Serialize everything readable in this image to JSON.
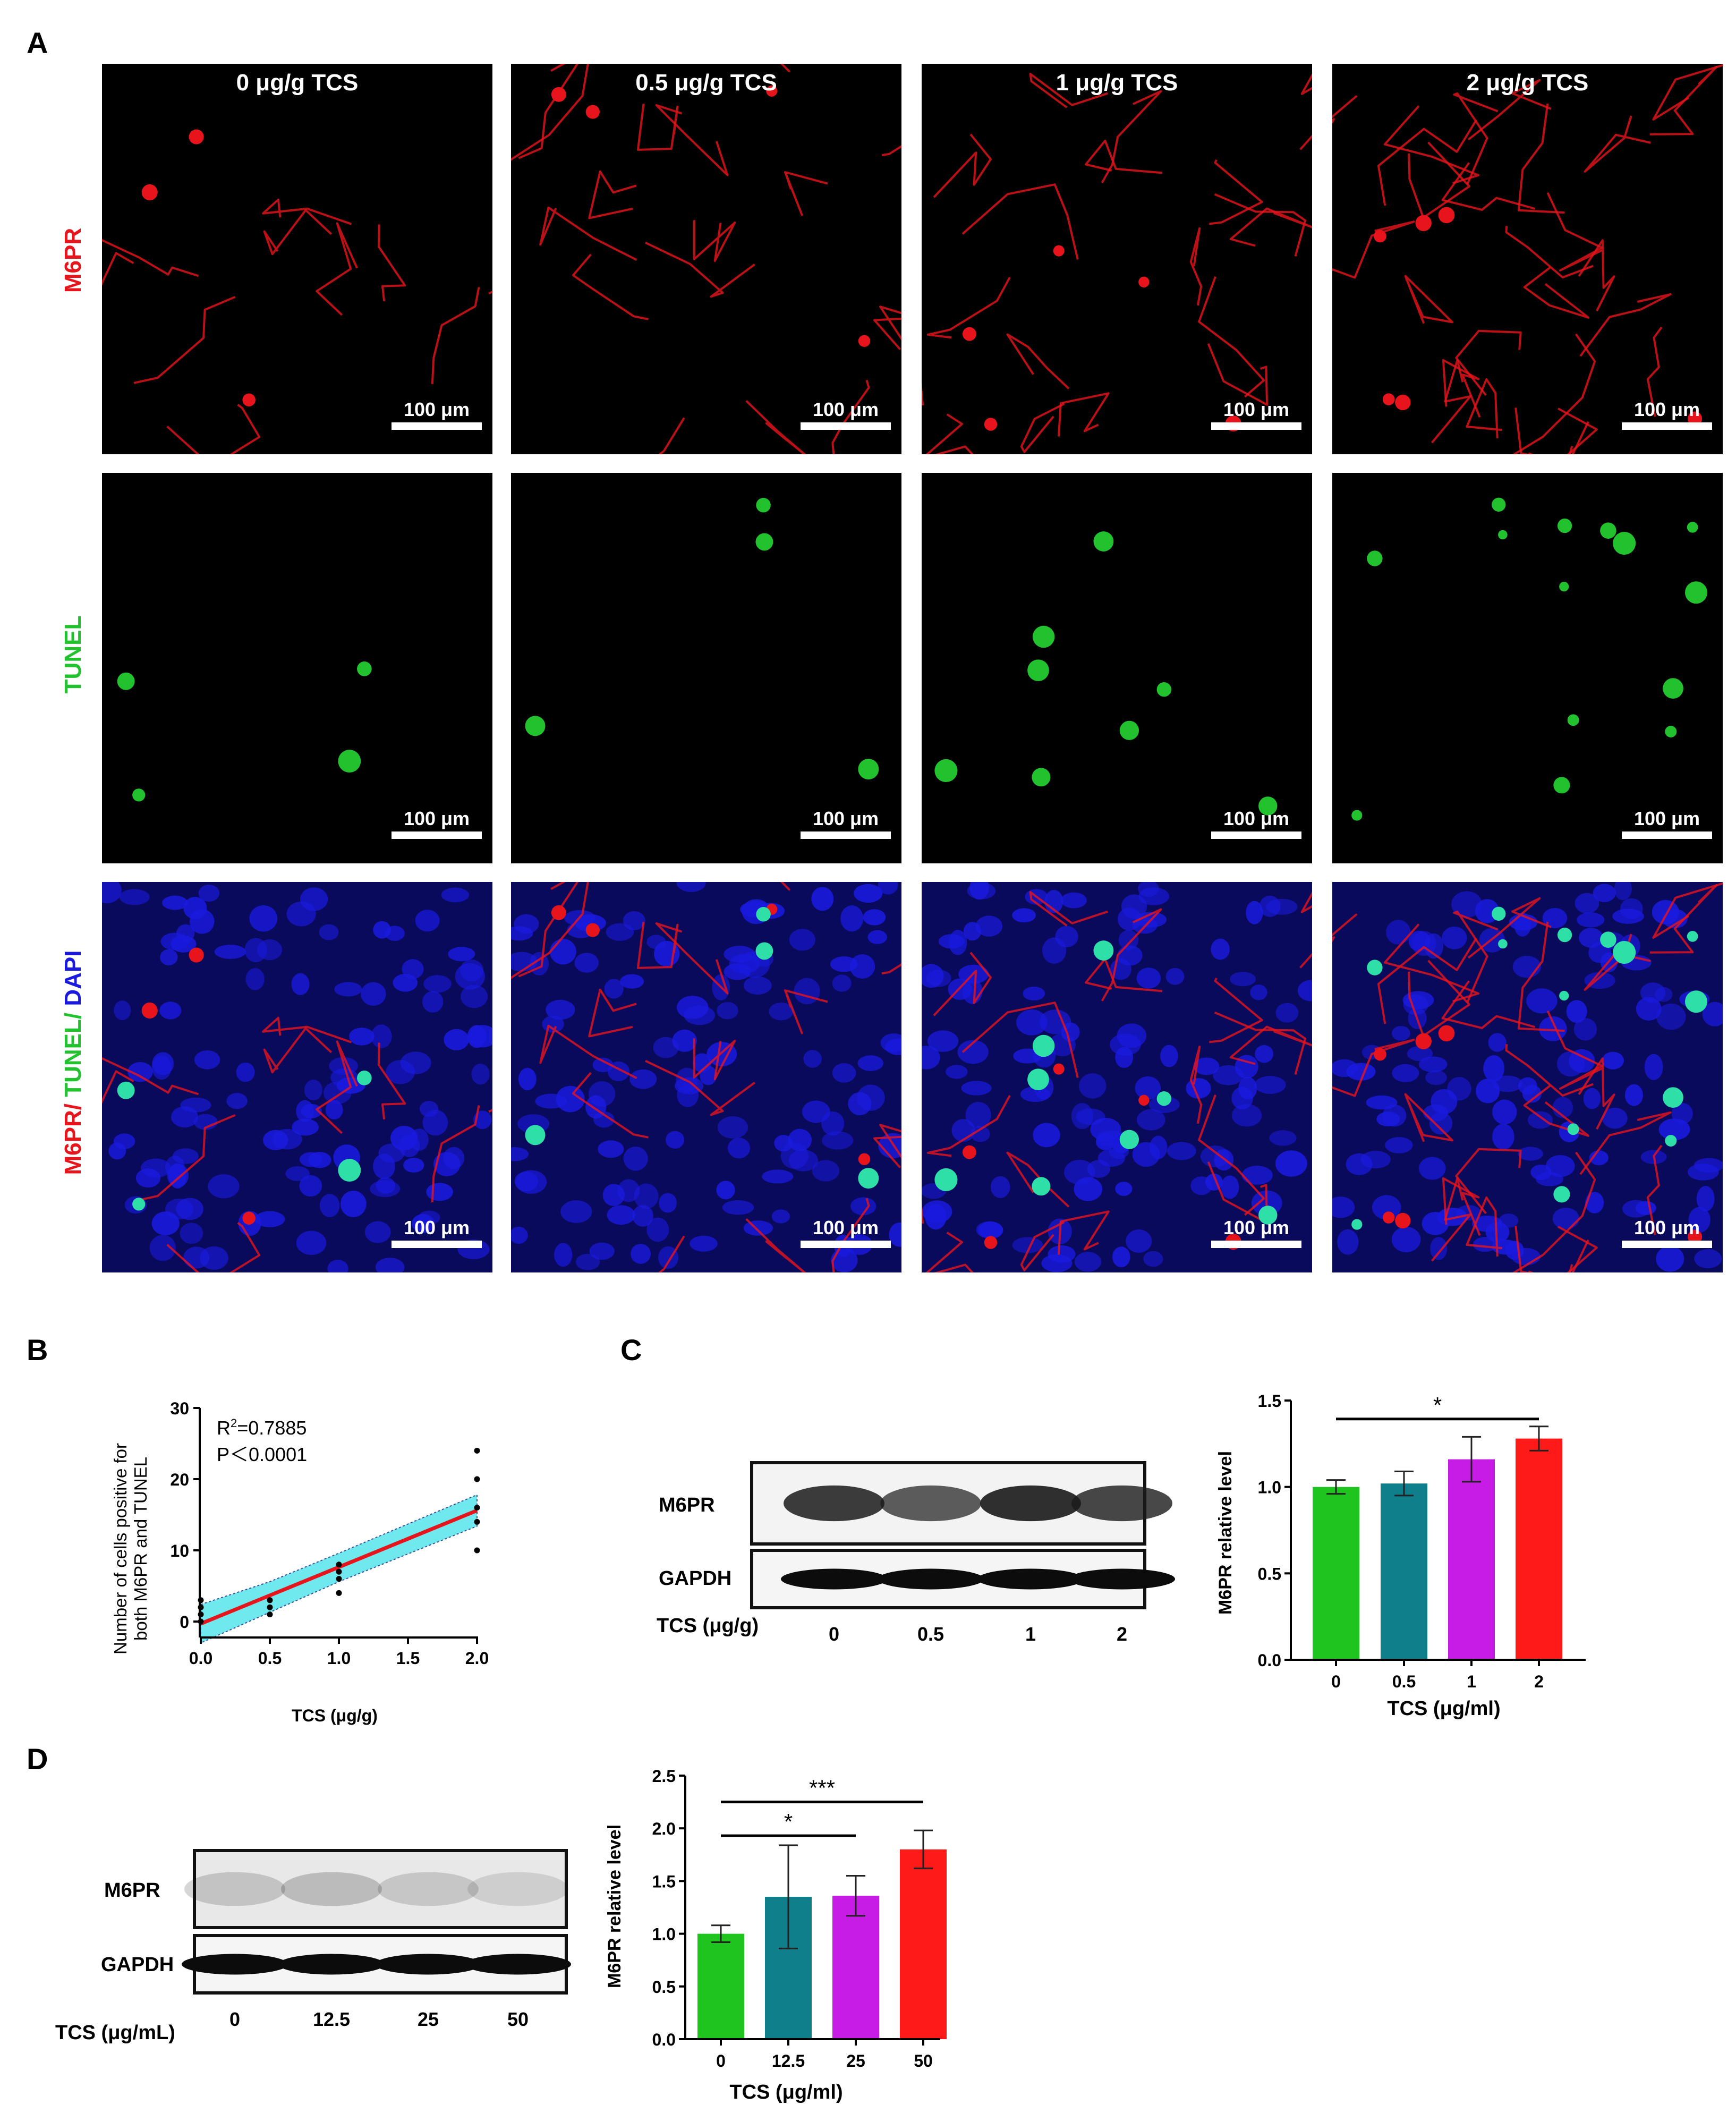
{
  "panel_letters": [
    "A",
    "B",
    "C",
    "D"
  ],
  "panel_a": {
    "columns": [
      "0 μg/g TCS",
      "0.5 μg/g TCS",
      "1 μg/g TCS",
      "2 μg/g TCS"
    ],
    "rows": [
      {
        "parts": [
          {
            "text": "M6PR",
            "color": "#e8141c"
          }
        ]
      },
      {
        "parts": [
          {
            "text": "TUNEL",
            "color": "#22c22e"
          }
        ]
      },
      {
        "parts": [
          {
            "text": "M6PR",
            "color": "#e8141c"
          },
          {
            "text": "/ ",
            "color": "#e8141c"
          },
          {
            "text": "TUNEL",
            "color": "#22c22e"
          },
          {
            "text": "/ ",
            "color": "#22c22e"
          },
          {
            "text": "DAPI",
            "color": "#1a1adf"
          }
        ]
      }
    ],
    "scale_bar_label": "100 μm",
    "colors": {
      "m6pr": "#e8141c",
      "tunel": "#22c22e",
      "dapi": "#1a1adf"
    }
  },
  "panel_c": {
    "blot_labels": [
      "M6PR",
      "GAPDH"
    ],
    "lane_title": "TCS (μg/g)",
    "lanes": [
      "0",
      "0.5",
      "1",
      "2"
    ]
  },
  "panel_d": {
    "blot_labels": [
      "M6PR",
      "GAPDH"
    ],
    "lane_title": "TCS (μg/mL)",
    "lanes": [
      "0",
      "12.5",
      "25",
      "50"
    ]
  },
  "chart_data": [
    {
      "id": "B",
      "type": "scatter",
      "xlabel": "TCS (μg/g)",
      "ylabel": [
        "Number of cells positive for",
        "both M6PR and TUNEL"
      ],
      "xlim": [
        0,
        2.0
      ],
      "ylim": [
        0,
        30
      ],
      "xticks": [
        "0.0",
        "0.5",
        "1.0",
        "1.5",
        "2.0"
      ],
      "yticks": [
        "0",
        "10",
        "20",
        "30"
      ],
      "annotations": {
        "r2_prefix": "R",
        "r2_sup": "2",
        "r2_value": "=0.7885",
        "p_value": "P＜0.0001"
      },
      "points": [
        [
          0,
          0
        ],
        [
          0,
          1
        ],
        [
          0,
          2
        ],
        [
          0,
          3
        ],
        [
          0.5,
          1
        ],
        [
          0.5,
          2
        ],
        [
          0.5,
          3
        ],
        [
          1.0,
          4
        ],
        [
          1.0,
          6
        ],
        [
          1.0,
          7
        ],
        [
          1.0,
          8
        ],
        [
          2.0,
          10
        ],
        [
          2.0,
          14
        ],
        [
          2.0,
          16
        ],
        [
          2.0,
          20
        ],
        [
          2.0,
          24
        ]
      ],
      "fit_line": {
        "x": [
          0,
          2.0
        ],
        "y": [
          -0.3,
          15.6
        ],
        "color": "#e8141c"
      },
      "confidence_band": {
        "x": [
          0,
          0.5,
          1.0,
          1.5,
          2.0
        ],
        "upper": [
          2.4,
          5.6,
          9.6,
          13.7,
          17.8
        ],
        "lower": [
          -3.0,
          1.3,
          5.6,
          9.5,
          13.4
        ],
        "color": "#6fe8ee"
      }
    },
    {
      "id": "C",
      "type": "bar",
      "categories": [
        "0",
        "0.5",
        "1",
        "2"
      ],
      "values": [
        1.0,
        1.02,
        1.16,
        1.28
      ],
      "errors": [
        0.04,
        0.07,
        0.13,
        0.07
      ],
      "colors": [
        "#1fc41f",
        "#0f7f8c",
        "#c61ce6",
        "#ff1a1a"
      ],
      "xlabel": "TCS (μg/ml)",
      "ylabel": "M6PR relative level",
      "ylim": [
        0,
        1.5
      ],
      "yticks": [
        "0.0",
        "0.5",
        "1.0",
        "1.5"
      ],
      "significance": [
        {
          "from": 0,
          "to": 3,
          "label": "*"
        }
      ]
    },
    {
      "id": "D",
      "type": "bar",
      "categories": [
        "0",
        "12.5",
        "25",
        "50"
      ],
      "values": [
        1.0,
        1.35,
        1.36,
        1.8
      ],
      "errors": [
        0.08,
        0.49,
        0.19,
        0.18
      ],
      "colors": [
        "#1fc41f",
        "#0f7f8c",
        "#c61ce6",
        "#ff1a1a"
      ],
      "xlabel": "TCS (μg/ml)",
      "ylabel": "M6PR relative level",
      "ylim": [
        0,
        2.5
      ],
      "yticks": [
        "0.0",
        "0.5",
        "1.0",
        "1.5",
        "2.0",
        "2.5"
      ],
      "significance": [
        {
          "from": 0,
          "to": 3,
          "label": "***"
        },
        {
          "from": 0,
          "to": 2,
          "label": "*"
        }
      ]
    }
  ]
}
